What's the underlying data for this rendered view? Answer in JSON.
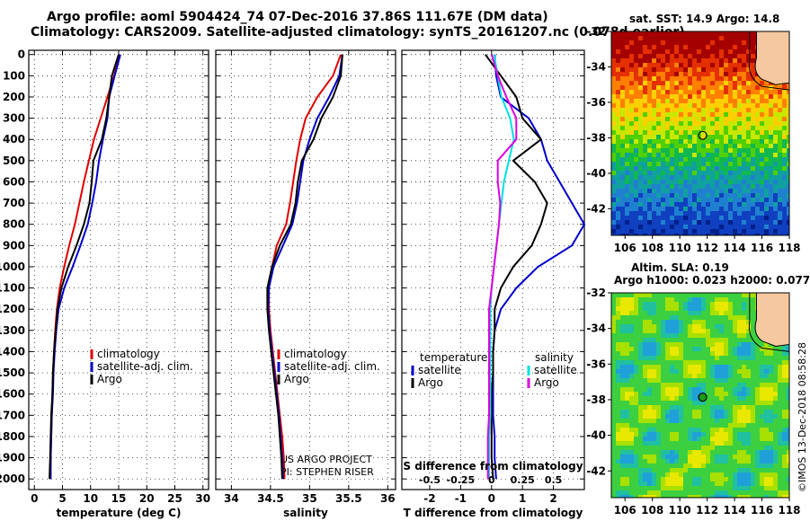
{
  "header": {
    "line1": "Argo profile: aoml 5904424_74 07-Dec-2016 37.86S 111.67E (DM data)",
    "line2": "Climatology: CARS2009. Satellite-adjusted climatology: synTS_20161207.nc (0.078d earlier)"
  },
  "colors": {
    "climatology": "#e00000",
    "satellite": "#0000cc",
    "argo": "#000000",
    "sat_salinity": "#00e0e0",
    "clim_salinity": "#e000e0"
  },
  "panels": {
    "temperature": {
      "xlabel": "temperature (deg C)",
      "xticks": [
        "0",
        "5",
        "10",
        "15",
        "20",
        "25",
        "30"
      ],
      "legend": [
        "climatology",
        "satellite-adj. clim.",
        "Argo"
      ]
    },
    "salinity": {
      "xlabel": "salinity",
      "xticks": [
        "34",
        "34.5",
        "35",
        "35.5",
        "36"
      ],
      "legend": [
        "climatology",
        "satellite-adj. clim.",
        "Argo"
      ],
      "credit1": "US ARGO PROJECT",
      "credit2": "PI: STEPHEN RISER"
    },
    "difference": {
      "xlabel": "T difference from climatology",
      "xticks": [
        "-2",
        "-1",
        "0",
        "1",
        "2"
      ],
      "top_label": "S difference from climatology",
      "top_ticks": [
        "-0.5",
        "-0.25",
        "0",
        "0.25",
        "0.5"
      ],
      "legend_left_title": "temperature",
      "legend_right_title": "salinity",
      "legend_items": [
        "satellite",
        "Argo"
      ]
    }
  },
  "depth_ticks": [
    "0",
    "100",
    "200",
    "300",
    "400",
    "500",
    "600",
    "700",
    "800",
    "900",
    "1000",
    "1100",
    "1200",
    "1300",
    "1400",
    "1500",
    "1600",
    "1700",
    "1800",
    "1900",
    "2000"
  ],
  "maps": {
    "sst": {
      "title": "sat. SST: 14.9 Argo: 14.8"
    },
    "sla": {
      "title1": "Altim. SLA: 0.19",
      "title2": "Argo h1000: 0.023 h2000: 0.077"
    },
    "lat_ticks": [
      "-32",
      "-34",
      "-36",
      "-38",
      "-40",
      "-42"
    ],
    "lon_ticks": [
      "106",
      "108",
      "110",
      "112",
      "114",
      "116",
      "118"
    ],
    "float_lon": 111.67,
    "float_lat": -37.86
  },
  "side_text": "©IMOS 13-Dec-2018 08:58:28",
  "chart_data": [
    {
      "type": "line",
      "title": "",
      "xlabel": "temperature (deg C)",
      "ylabel": "",
      "xlim": [
        -1,
        31
      ],
      "ylim": [
        2050,
        -20
      ],
      "series": [
        {
          "name": "climatology",
          "x": [
            15.2,
            14.2,
            13.0,
            11.8,
            10.6,
            9.7,
            8.8,
            8.0,
            7.2,
            6.2,
            5.3,
            4.5,
            4.0,
            3.7,
            3.5,
            3.3,
            3.2,
            3.1,
            3.0,
            2.9,
            2.8
          ],
          "y": [
            0,
            100,
            200,
            300,
            400,
            500,
            600,
            700,
            800,
            900,
            1000,
            1100,
            1200,
            1300,
            1400,
            1500,
            1600,
            1700,
            1800,
            1900,
            2000
          ]
        },
        {
          "name": "satellite-adj. clim.",
          "x": [
            15.3,
            14.3,
            13.3,
            13.0,
            12.2,
            11.5,
            11.0,
            10.3,
            9.5,
            8.2,
            6.8,
            5.3,
            4.3,
            3.9,
            3.6,
            3.4,
            3.3,
            3.1,
            3.0,
            2.9,
            2.9
          ],
          "y": [
            0,
            100,
            200,
            300,
            400,
            500,
            600,
            700,
            800,
            900,
            1000,
            1100,
            1200,
            1300,
            1400,
            1500,
            1600,
            1700,
            1800,
            1900,
            2000
          ]
        },
        {
          "name": "Argo",
          "x": [
            15.0,
            13.8,
            13.3,
            12.8,
            12.0,
            10.5,
            10.2,
            9.8,
            8.8,
            7.5,
            6.0,
            4.8,
            4.1,
            3.8,
            3.5,
            3.3,
            3.2,
            3.0,
            2.9,
            2.8,
            2.7
          ],
          "y": [
            0,
            100,
            200,
            300,
            400,
            500,
            600,
            700,
            800,
            900,
            1000,
            1100,
            1200,
            1300,
            1400,
            1500,
            1600,
            1700,
            1800,
            1900,
            2000
          ]
        }
      ]
    },
    {
      "type": "line",
      "title": "",
      "xlabel": "salinity",
      "ylabel": "",
      "xlim": [
        33.8,
        36.1
      ],
      "ylim": [
        2050,
        -20
      ],
      "series": [
        {
          "name": "climatology",
          "x": [
            35.4,
            35.3,
            35.1,
            34.95,
            34.88,
            34.83,
            34.79,
            34.75,
            34.7,
            34.58,
            34.52,
            34.48,
            34.48,
            34.5,
            34.53,
            34.56,
            34.59,
            34.62,
            34.65,
            34.67,
            34.68
          ],
          "y": [
            0,
            100,
            200,
            300,
            400,
            500,
            600,
            700,
            800,
            900,
            1000,
            1100,
            1200,
            1300,
            1400,
            1500,
            1600,
            1700,
            1800,
            1900,
            2000
          ]
        },
        {
          "name": "satellite-adj. clim.",
          "x": [
            35.42,
            35.38,
            35.25,
            35.1,
            35.0,
            34.92,
            34.88,
            34.84,
            34.78,
            34.66,
            34.54,
            34.48,
            34.47,
            34.49,
            34.52,
            34.55,
            34.58,
            34.61,
            34.63,
            34.65,
            34.66
          ],
          "y": [
            0,
            100,
            200,
            300,
            400,
            500,
            600,
            700,
            800,
            900,
            1000,
            1100,
            1200,
            1300,
            1400,
            1500,
            1600,
            1700,
            1800,
            1900,
            2000
          ]
        },
        {
          "name": "Argo",
          "x": [
            35.42,
            35.4,
            35.3,
            35.15,
            35.05,
            34.9,
            34.85,
            34.82,
            34.76,
            34.62,
            34.52,
            34.46,
            34.46,
            34.48,
            34.51,
            34.54,
            34.57,
            34.6,
            34.62,
            34.64,
            34.65
          ],
          "y": [
            0,
            100,
            200,
            300,
            400,
            500,
            600,
            700,
            800,
            900,
            1000,
            1100,
            1200,
            1300,
            1400,
            1500,
            1600,
            1700,
            1800,
            1900,
            2000
          ]
        }
      ]
    },
    {
      "type": "line",
      "title": "",
      "xlabel": "T difference from climatology",
      "ylabel": "",
      "xlim": [
        -2.9,
        3.0
      ],
      "ylim": [
        2050,
        -20
      ],
      "series": [
        {
          "name": "temperature satellite",
          "x": [
            0.1,
            0.15,
            0.3,
            1.2,
            1.6,
            1.8,
            2.2,
            2.6,
            3.0,
            2.6,
            1.5,
            0.8,
            0.3,
            0.1,
            0.05,
            0.05,
            0.05,
            0.05,
            0.1,
            0.1,
            0.15
          ],
          "y": [
            0,
            100,
            200,
            300,
            400,
            500,
            600,
            700,
            800,
            900,
            1000,
            1100,
            1200,
            1300,
            1400,
            1500,
            1600,
            1700,
            1800,
            1900,
            2000
          ]
        },
        {
          "name": "temperature Argo",
          "x": [
            -0.2,
            0.3,
            0.8,
            1.0,
            1.6,
            0.7,
            1.4,
            1.8,
            1.6,
            1.3,
            0.7,
            0.3,
            0.1,
            0.1,
            0.05,
            0.05,
            0.0,
            0.0,
            0.0,
            0.0,
            0.05
          ],
          "y": [
            0,
            100,
            200,
            300,
            400,
            500,
            600,
            700,
            800,
            900,
            1000,
            1100,
            1200,
            1300,
            1400,
            1500,
            1600,
            1700,
            1800,
            1900,
            2000
          ]
        },
        {
          "name": "salinity satellite",
          "x": [
            0.02,
            0.05,
            0.08,
            0.15,
            0.18,
            0.14,
            0.1,
            0.08,
            0.06,
            0.04,
            0.02,
            0.0,
            -0.01,
            -0.01,
            -0.01,
            -0.01,
            -0.01,
            -0.01,
            -0.02,
            -0.02,
            -0.02
          ],
          "y": [
            0,
            100,
            200,
            300,
            400,
            500,
            600,
            700,
            800,
            900,
            1000,
            1100,
            1200,
            1300,
            1400,
            1500,
            1600,
            1700,
            1800,
            1900,
            2000
          ]
        },
        {
          "name": "salinity Argo",
          "x": [
            0.0,
            0.05,
            0.12,
            0.2,
            0.2,
            0.05,
            0.05,
            0.07,
            0.06,
            0.04,
            0.02,
            0.0,
            -0.02,
            -0.02,
            -0.02,
            -0.02,
            -0.02,
            -0.02,
            -0.03,
            -0.03,
            -0.03
          ],
          "y": [
            0,
            100,
            200,
            300,
            400,
            500,
            600,
            700,
            800,
            900,
            1000,
            1100,
            1200,
            1300,
            1400,
            1500,
            1600,
            1700,
            1800,
            1900,
            2000
          ]
        }
      ]
    }
  ]
}
